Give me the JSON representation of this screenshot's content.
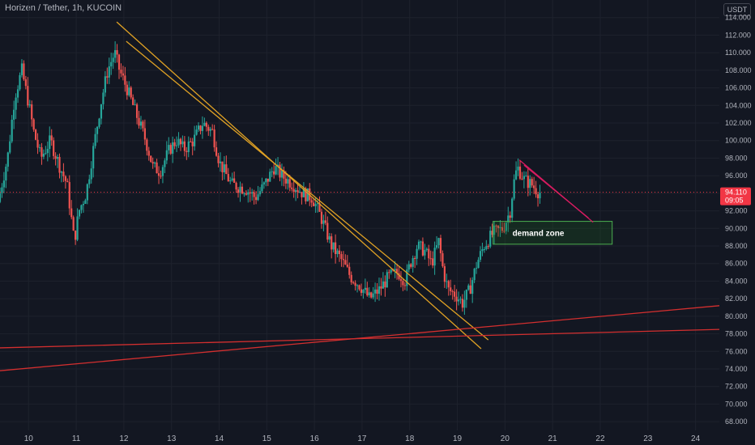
{
  "title": "Horizen / Tether, 1h, KUCOIN",
  "currency_label": "USDT",
  "chart_data": {
    "type": "candlestick",
    "title": "Horizen / Tether, 1h, KUCOIN",
    "ylim": [
      67,
      116
    ],
    "y_ticks": [
      68,
      70,
      72,
      74,
      76,
      78,
      80,
      82,
      84,
      86,
      88,
      90,
      92,
      94,
      96,
      98,
      100,
      102,
      104,
      106,
      108,
      110,
      112,
      114
    ],
    "y_tick_labels": [
      "68.000",
      "70.000",
      "72.000",
      "74.000",
      "76.000",
      "78.000",
      "80.000",
      "82.000",
      "84.000",
      "86.000",
      "88.000",
      "90.000",
      "92.000",
      "94.000",
      "96.000",
      "98.000",
      "100.000",
      "102.000",
      "104.000",
      "106.000",
      "108.000",
      "110.000",
      "112.000",
      "114.000"
    ],
    "xlim": [
      9.4,
      24.5
    ],
    "x_ticks": [
      10,
      11,
      12,
      13,
      14,
      15,
      16,
      17,
      18,
      19,
      20,
      21,
      22,
      23,
      24
    ],
    "x_tick_labels": [
      "10",
      "11",
      "12",
      "13",
      "14",
      "15",
      "16",
      "17",
      "18",
      "19",
      "20",
      "21",
      "22",
      "23",
      "24"
    ],
    "current_price": {
      "label": "94.110",
      "value": 94.11,
      "countdown": "09:05"
    },
    "price_path": [
      [
        9.4,
        93
      ],
      [
        9.6,
        98
      ],
      [
        9.75,
        105
      ],
      [
        9.9,
        108
      ],
      [
        10.05,
        104
      ],
      [
        10.15,
        101
      ],
      [
        10.3,
        98
      ],
      [
        10.5,
        100
      ],
      [
        10.7,
        97
      ],
      [
        10.85,
        95
      ],
      [
        11.0,
        88.5
      ],
      [
        11.1,
        92
      ],
      [
        11.25,
        94
      ],
      [
        11.4,
        99
      ],
      [
        11.55,
        104
      ],
      [
        11.7,
        108
      ],
      [
        11.85,
        110
      ],
      [
        11.95,
        108
      ],
      [
        12.1,
        106
      ],
      [
        12.3,
        103
      ],
      [
        12.5,
        100
      ],
      [
        12.65,
        97
      ],
      [
        12.8,
        96.5
      ],
      [
        13.0,
        99
      ],
      [
        13.15,
        100
      ],
      [
        13.3,
        99
      ],
      [
        13.5,
        100
      ],
      [
        13.7,
        102
      ],
      [
        13.9,
        101
      ],
      [
        14.05,
        97.5
      ],
      [
        14.3,
        95
      ],
      [
        14.6,
        94.5
      ],
      [
        14.8,
        93.5
      ],
      [
        15.0,
        95
      ],
      [
        15.2,
        97
      ],
      [
        15.35,
        96
      ],
      [
        15.6,
        95
      ],
      [
        15.8,
        94
      ],
      [
        16.0,
        93.5
      ],
      [
        16.2,
        91
      ],
      [
        16.4,
        88
      ],
      [
        16.6,
        86.5
      ],
      [
        16.8,
        84.5
      ],
      [
        17.0,
        83.5
      ],
      [
        17.2,
        82
      ],
      [
        17.4,
        83
      ],
      [
        17.6,
        84.5
      ],
      [
        17.8,
        85
      ],
      [
        17.95,
        84
      ],
      [
        18.05,
        86
      ],
      [
        18.2,
        88
      ],
      [
        18.35,
        87.5
      ],
      [
        18.5,
        86
      ],
      [
        18.65,
        88.5
      ],
      [
        18.75,
        85
      ],
      [
        18.85,
        83
      ],
      [
        19.0,
        82.5
      ],
      [
        19.15,
        81.5
      ],
      [
        19.3,
        83
      ],
      [
        19.45,
        86
      ],
      [
        19.6,
        88
      ],
      [
        19.8,
        89.5
      ],
      [
        20.0,
        90
      ],
      [
        20.15,
        92
      ],
      [
        20.22,
        95
      ],
      [
        20.3,
        97
      ],
      [
        20.45,
        95.5
      ],
      [
        20.6,
        95
      ],
      [
        20.75,
        94.1
      ]
    ],
    "demand_zone": {
      "label": "demand zone",
      "x": [
        19.75,
        22.25
      ],
      "y": [
        88.2,
        90.8
      ]
    },
    "trendlines": [
      {
        "color": "#e0a224",
        "from": [
          11.85,
          113.5
        ],
        "to": [
          19.5,
          76.3
        ]
      },
      {
        "color": "#e0a224",
        "from": [
          12.05,
          111.3
        ],
        "to": [
          19.65,
          77.3
        ]
      },
      {
        "color": "#d32f2f",
        "from": [
          9.4,
          73.8
        ],
        "to": [
          24.5,
          81.2
        ]
      },
      {
        "color": "#d32f2f",
        "from": [
          9.4,
          76.4
        ],
        "to": [
          24.5,
          78.5
        ]
      },
      {
        "color": "#d81b60",
        "from": [
          20.3,
          97.8
        ],
        "to": [
          21.85,
          90.7
        ]
      },
      {
        "color": "#d81b60",
        "from": [
          20.4,
          97.2
        ],
        "to": [
          21.75,
          91.2
        ]
      }
    ],
    "colors": {
      "up": "#26a69a",
      "down": "#ef5350",
      "background": "#131722",
      "grid": "#1e222d",
      "zone": "#4caf50",
      "price_tag": "#f23645"
    }
  }
}
